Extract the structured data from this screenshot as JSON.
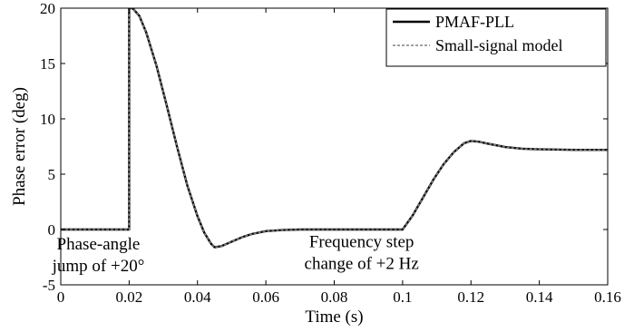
{
  "chart_data": {
    "type": "line",
    "title": "",
    "xlabel": "Time (s)",
    "ylabel": "Phase error (deg)",
    "xlim": [
      0,
      0.16
    ],
    "ylim": [
      -5,
      20
    ],
    "xticks": [
      0,
      0.02,
      0.04,
      0.06,
      0.08,
      0.1,
      0.12,
      0.14,
      0.16
    ],
    "xtick_labels": [
      "0",
      "0.02",
      "0.04",
      "0.06",
      "0.08",
      "0.1",
      "0.12",
      "0.14",
      "0.16"
    ],
    "yticks": [
      -5,
      0,
      5,
      10,
      15,
      20
    ],
    "ytick_labels": [
      "-5",
      "0",
      "5",
      "10",
      "15",
      "20"
    ],
    "grid": false,
    "legend_position": "top-right",
    "series": [
      {
        "name": "PMAF-PLL",
        "style": "solid",
        "color": "#000000",
        "x": [
          0,
          0.02,
          0.02,
          0.021,
          0.023,
          0.025,
          0.028,
          0.031,
          0.034,
          0.037,
          0.04,
          0.042,
          0.044,
          0.045,
          0.047,
          0.05,
          0.053,
          0.056,
          0.06,
          0.065,
          0.07,
          0.08,
          0.09,
          0.1,
          0.103,
          0.106,
          0.109,
          0.112,
          0.115,
          0.118,
          0.12,
          0.122,
          0.125,
          0.13,
          0.135,
          0.14,
          0.15,
          0.16
        ],
        "y": [
          0,
          0,
          20,
          20,
          19.3,
          17.8,
          14.8,
          11.2,
          7.5,
          4.0,
          1.2,
          -0.3,
          -1.3,
          -1.6,
          -1.5,
          -1.1,
          -0.7,
          -0.4,
          -0.15,
          -0.05,
          0,
          0,
          0,
          0,
          1.3,
          2.9,
          4.5,
          5.9,
          7.0,
          7.8,
          8.0,
          7.95,
          7.75,
          7.45,
          7.3,
          7.25,
          7.2,
          7.2
        ]
      },
      {
        "name": "Small-signal model",
        "style": "dashed",
        "color": "#808080",
        "x": [
          0,
          0.02,
          0.02,
          0.021,
          0.023,
          0.025,
          0.028,
          0.031,
          0.034,
          0.037,
          0.04,
          0.042,
          0.044,
          0.045,
          0.047,
          0.05,
          0.053,
          0.056,
          0.06,
          0.065,
          0.07,
          0.08,
          0.09,
          0.1,
          0.103,
          0.106,
          0.109,
          0.112,
          0.115,
          0.118,
          0.12,
          0.122,
          0.125,
          0.13,
          0.135,
          0.14,
          0.15,
          0.16
        ],
        "y": [
          0,
          0,
          20,
          20,
          19.3,
          17.8,
          14.8,
          11.2,
          7.5,
          4.0,
          1.2,
          -0.3,
          -1.3,
          -1.6,
          -1.5,
          -1.1,
          -0.7,
          -0.4,
          -0.15,
          -0.05,
          0,
          0,
          0,
          0,
          1.3,
          2.9,
          4.5,
          5.9,
          7.0,
          7.8,
          8.0,
          7.95,
          7.75,
          7.45,
          7.3,
          7.25,
          7.2,
          7.2
        ]
      }
    ],
    "annotations": [
      {
        "lines": [
          "Phase-angle",
          "jump of +20°"
        ],
        "x": 0.011,
        "y": -1.8
      },
      {
        "lines": [
          "Frequency step",
          "change of +2 Hz"
        ],
        "x": 0.088,
        "y": -1.6
      }
    ]
  }
}
